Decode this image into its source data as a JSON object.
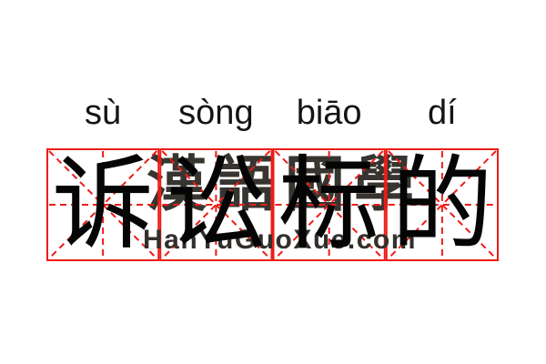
{
  "word": {
    "syllables": [
      {
        "pinyin": "sù",
        "hanzi": "诉"
      },
      {
        "pinyin": "sòng",
        "hanzi": "讼"
      },
      {
        "pinyin": "biāo",
        "hanzi": "标"
      },
      {
        "pinyin": "dí",
        "hanzi": "的"
      }
    ]
  },
  "watermark": {
    "cjk": "漢語國學",
    "site": "HanYuGuoXue.com"
  },
  "grid": {
    "cells": 4,
    "style": "tianzige"
  },
  "colors": {
    "grid_red": "#ee1c17",
    "ink": "#050505",
    "watermark_gray": "#332f2c",
    "background": "#ffffff"
  }
}
